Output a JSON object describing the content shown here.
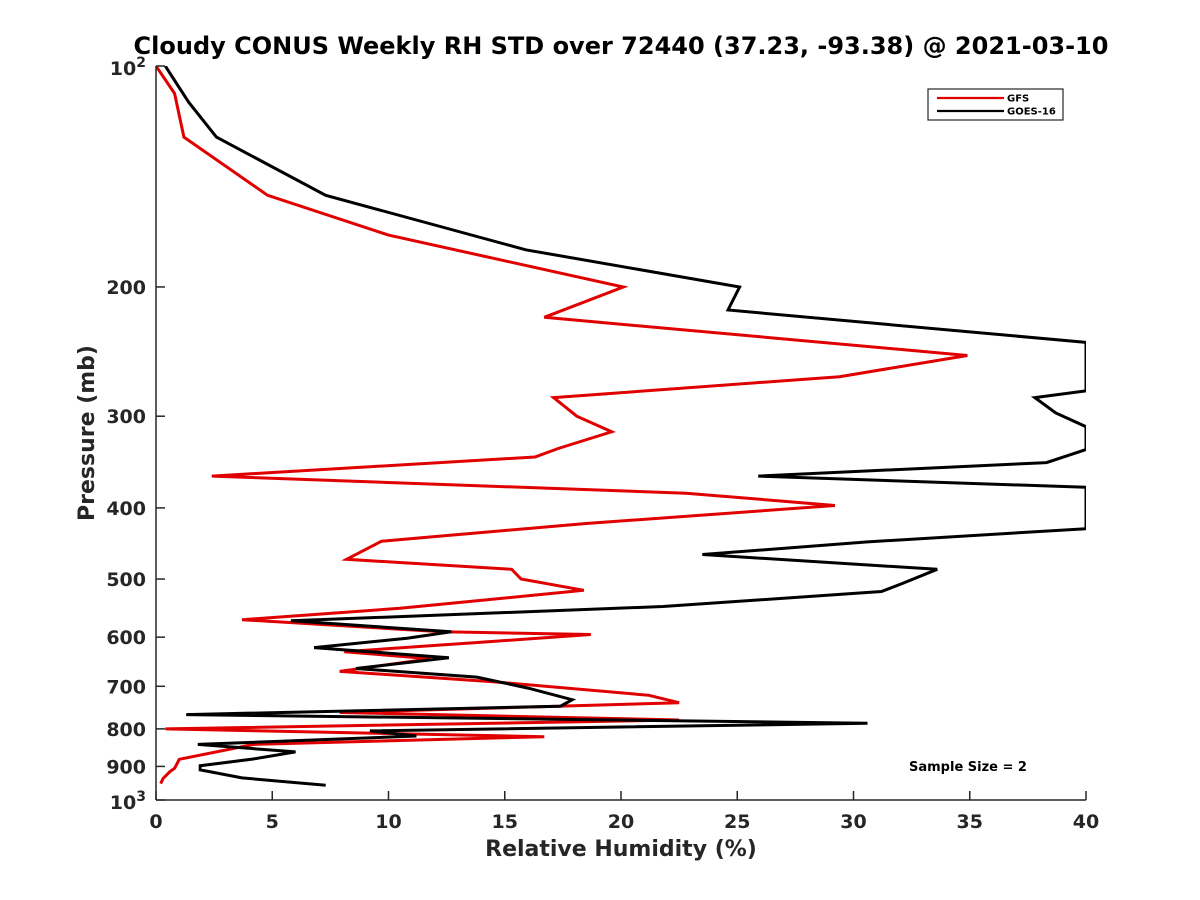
{
  "chart_data": {
    "type": "line",
    "title": "Cloudy CONUS Weekly RH STD over 72440 (37.23, -93.38) @ 2021-03-10",
    "xlabel": "Relative Humidity (%)",
    "ylabel": "Pressure (mb)",
    "xlim": [
      0,
      40
    ],
    "ylim": [
      100,
      1000
    ],
    "y_scale": "log",
    "y_reversed": true,
    "grid": false,
    "legend_position": "top-right",
    "x_ticks": [
      "0",
      "5",
      "10",
      "15",
      "20",
      "25",
      "30",
      "35",
      "40"
    ],
    "y_ticks": [
      {
        "value": 100,
        "base": "10",
        "exp": "2"
      },
      {
        "value": 200,
        "label": "200"
      },
      {
        "value": 300,
        "label": "300"
      },
      {
        "value": 400,
        "label": "400"
      },
      {
        "value": 500,
        "label": "500"
      },
      {
        "value": 600,
        "label": "600"
      },
      {
        "value": 700,
        "label": "700"
      },
      {
        "value": 800,
        "label": "800"
      },
      {
        "value": 900,
        "label": "900"
      },
      {
        "value": 1000,
        "base": "10",
        "exp": "3"
      }
    ],
    "annotation": "Sample Size = 2",
    "series": [
      {
        "name": "GFS",
        "color": "#e00000",
        "points": [
          [
            0.0,
            100
          ],
          [
            0.8,
            109
          ],
          [
            1.2,
            125
          ],
          [
            4.8,
            150
          ],
          [
            10.0,
            170
          ],
          [
            20.1,
            200
          ],
          [
            16.7,
            220
          ],
          [
            34.9,
            248
          ],
          [
            29.4,
            265
          ],
          [
            17.1,
            283
          ],
          [
            18.1,
            300
          ],
          [
            19.6,
            315
          ],
          [
            17.3,
            332
          ],
          [
            16.3,
            341
          ],
          [
            2.4,
            362
          ],
          [
            22.8,
            382
          ],
          [
            29.2,
            397
          ],
          [
            18.5,
            420
          ],
          [
            9.7,
            444
          ],
          [
            8.2,
            470
          ],
          [
            15.3,
            485
          ],
          [
            15.7,
            500
          ],
          [
            18.4,
            518
          ],
          [
            10.5,
            548
          ],
          [
            3.7,
            568
          ],
          [
            12.3,
            590
          ],
          [
            18.7,
            595
          ],
          [
            13.9,
            610
          ],
          [
            8.1,
            628
          ],
          [
            11.8,
            642
          ],
          [
            7.9,
            668
          ],
          [
            14.5,
            690
          ],
          [
            21.2,
            720
          ],
          [
            22.5,
            737
          ],
          [
            7.9,
            760
          ],
          [
            22.5,
            778
          ],
          [
            0.4,
            800
          ],
          [
            16.7,
            820
          ],
          [
            4.2,
            840
          ],
          [
            1.0,
            880
          ],
          [
            0.8,
            905
          ],
          [
            0.6,
            915
          ],
          [
            0.3,
            935
          ],
          [
            0.2,
            950
          ]
        ]
      },
      {
        "name": "GOES-16",
        "color": "#000000",
        "points": [
          [
            0.4,
            100
          ],
          [
            1.4,
            112
          ],
          [
            2.6,
            125
          ],
          [
            7.3,
            150
          ],
          [
            15.9,
            178
          ],
          [
            25.1,
            200
          ],
          [
            24.6,
            215
          ],
          [
            40.0,
            238
          ],
          [
            40.0,
            277
          ],
          [
            37.8,
            283
          ],
          [
            38.7,
            297
          ],
          [
            40.0,
            310
          ],
          [
            40.0,
            333
          ],
          [
            38.3,
            347
          ],
          [
            25.9,
            362
          ],
          [
            40.0,
            375
          ],
          [
            40.0,
            427
          ],
          [
            30.6,
            445
          ],
          [
            23.5,
            463
          ],
          [
            33.6,
            485
          ],
          [
            32.1,
            507
          ],
          [
            31.2,
            520
          ],
          [
            21.8,
            545
          ],
          [
            5.8,
            570
          ],
          [
            12.7,
            590
          ],
          [
            10.8,
            602
          ],
          [
            6.8,
            620
          ],
          [
            12.6,
            640
          ],
          [
            8.6,
            662
          ],
          [
            13.8,
            680
          ],
          [
            16.0,
            704
          ],
          [
            17.9,
            730
          ],
          [
            17.4,
            745
          ],
          [
            1.3,
            765
          ],
          [
            30.6,
            786
          ],
          [
            9.2,
            805
          ],
          [
            11.2,
            818
          ],
          [
            1.8,
            840
          ],
          [
            6.0,
            860
          ],
          [
            4.1,
            880
          ],
          [
            1.9,
            898
          ],
          [
            1.9,
            910
          ],
          [
            3.7,
            933
          ],
          [
            7.3,
            955
          ]
        ]
      }
    ]
  }
}
